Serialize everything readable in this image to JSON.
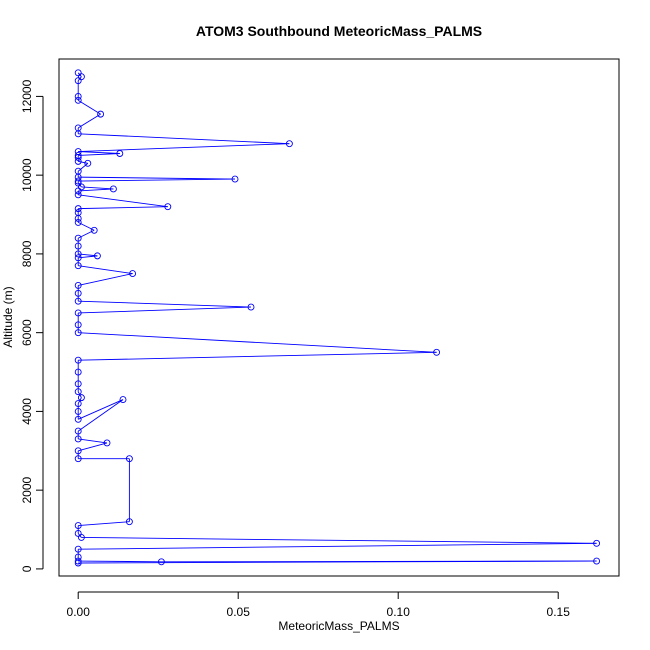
{
  "chart_data": {
    "type": "line",
    "title": "ATOM3 Southbound MeteoricMass_PALMS",
    "xlabel": "MeteoricMass_PALMS",
    "ylabel": "Altitude (m)",
    "xlim": [
      -0.006,
      0.169
    ],
    "ylim": [
      -180,
      12950
    ],
    "xticks": [
      0.0,
      0.05,
      0.1,
      0.15
    ],
    "xtick_labels": [
      "0.00",
      "0.05",
      "0.10",
      "0.15"
    ],
    "yticks": [
      0,
      2000,
      4000,
      6000,
      8000,
      10000,
      12000
    ],
    "ytick_labels": [
      "0",
      "2000",
      "4000",
      "6000",
      "8000",
      "10000",
      "12000"
    ],
    "grid": false,
    "series": [
      {
        "color": "#0000ff",
        "marker": "open-circle",
        "points": [
          [
            0.0,
            12600
          ],
          [
            0.001,
            12500
          ],
          [
            0.0,
            12400
          ],
          [
            0.0,
            12000
          ],
          [
            0.0,
            11900
          ],
          [
            0.007,
            11550
          ],
          [
            0.0,
            11200
          ],
          [
            0.0,
            11050
          ],
          [
            0.066,
            10800
          ],
          [
            0.0,
            10600
          ],
          [
            0.013,
            10550
          ],
          [
            0.0,
            10500
          ],
          [
            0.0,
            10450
          ],
          [
            0.0,
            10350
          ],
          [
            0.003,
            10300
          ],
          [
            0.0,
            10100
          ],
          [
            0.0,
            9950
          ],
          [
            0.049,
            9900
          ],
          [
            0.0,
            9850
          ],
          [
            0.0,
            9800
          ],
          [
            0.001,
            9700
          ],
          [
            0.011,
            9650
          ],
          [
            0.0,
            9600
          ],
          [
            0.0,
            9500
          ],
          [
            0.028,
            9200
          ],
          [
            0.0,
            9150
          ],
          [
            0.0,
            9050
          ],
          [
            0.0,
            8900
          ],
          [
            0.0,
            8800
          ],
          [
            0.005,
            8600
          ],
          [
            0.0,
            8400
          ],
          [
            0.0,
            8200
          ],
          [
            0.0,
            8000
          ],
          [
            0.006,
            7950
          ],
          [
            0.0,
            7900
          ],
          [
            0.0,
            7700
          ],
          [
            0.017,
            7500
          ],
          [
            0.0,
            7200
          ],
          [
            0.0,
            7000
          ],
          [
            0.0,
            6800
          ],
          [
            0.054,
            6650
          ],
          [
            0.0,
            6500
          ],
          [
            0.0,
            6200
          ],
          [
            0.0,
            6000
          ],
          [
            0.112,
            5500
          ],
          [
            0.0,
            5300
          ],
          [
            0.0,
            5000
          ],
          [
            0.0,
            4700
          ],
          [
            0.0,
            4500
          ],
          [
            0.001,
            4350
          ],
          [
            0.0,
            4200
          ],
          [
            0.0,
            4000
          ],
          [
            0.0,
            3800
          ],
          [
            0.014,
            4300
          ],
          [
            0.0,
            3500
          ],
          [
            0.0,
            3300
          ],
          [
            0.009,
            3200
          ],
          [
            0.0,
            3000
          ],
          [
            0.0,
            2800
          ],
          [
            0.016,
            2800
          ],
          [
            0.016,
            1200
          ],
          [
            0.0,
            1100
          ],
          [
            0.0,
            900
          ],
          [
            0.001,
            800
          ],
          [
            0.162,
            650
          ],
          [
            0.0,
            500
          ],
          [
            0.0,
            300
          ],
          [
            0.0,
            200
          ],
          [
            0.026,
            180
          ],
          [
            0.162,
            200
          ],
          [
            0.0,
            150
          ]
        ]
      }
    ]
  }
}
